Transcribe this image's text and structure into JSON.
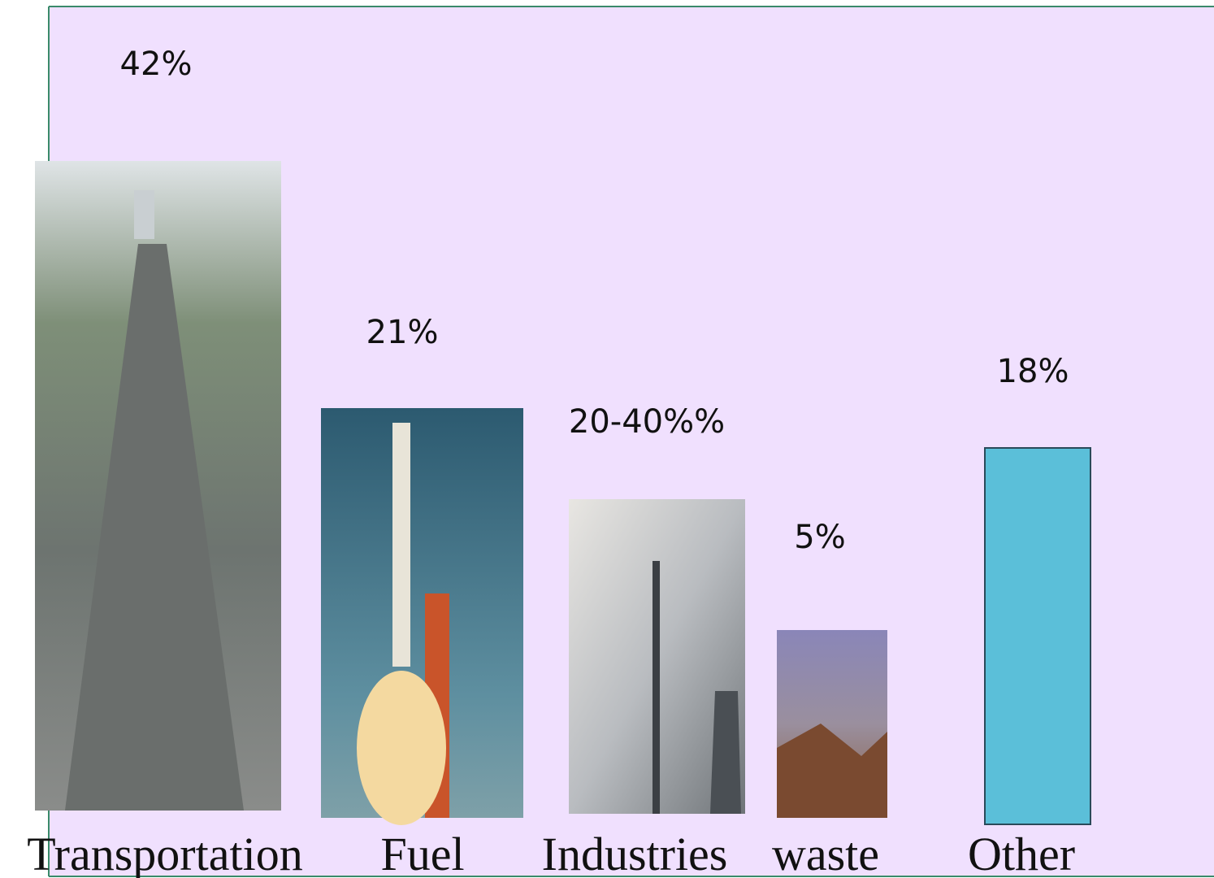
{
  "items": [
    {
      "label": "Transportation",
      "value_label": "42%"
    },
    {
      "label": "Fuel",
      "value_label": "21%"
    },
    {
      "label": "Industries",
      "value_label": "20-40%%"
    },
    {
      "label": "waste",
      "value_label": "5%"
    },
    {
      "label": "Other",
      "value_label": "18%"
    }
  ]
}
